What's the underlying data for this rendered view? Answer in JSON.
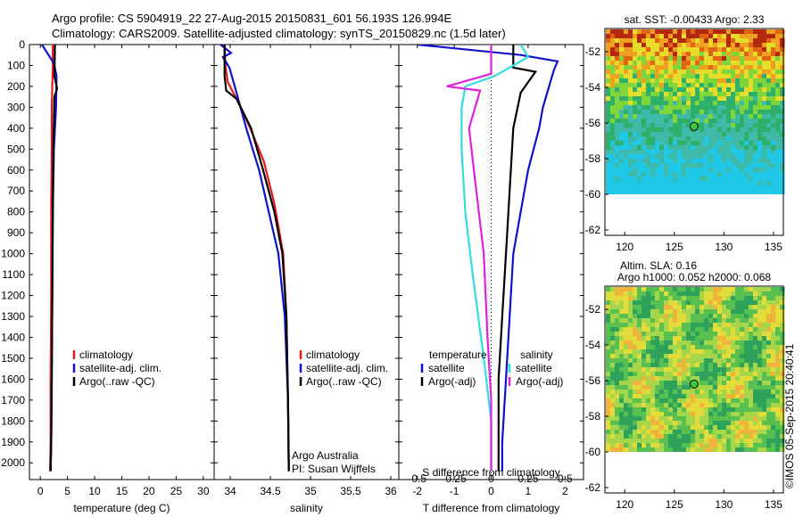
{
  "header": {
    "title_line1": "Argo profile: CS 5904919_22 27-Aug-2015 20150831_601 56.193S 126.994E",
    "title_line2": "Climatology: CARS2009. Satellite-adjusted climatology: synTS_20150829.nc (1.5d later)"
  },
  "colors": {
    "climatology": "#e41a1c",
    "satellite": "#1111cc",
    "argo": "#000000",
    "sat_salinity": "#33dddd",
    "argo_salinity": "#dd22dd"
  },
  "depth_ticks": [
    "0",
    "100",
    "200",
    "300",
    "400",
    "500",
    "600",
    "700",
    "800",
    "900",
    "1000",
    "1100",
    "1200",
    "1300",
    "1400",
    "1500",
    "1600",
    "1700",
    "1800",
    "1900",
    "2000"
  ],
  "chart_data": [
    {
      "type": "line",
      "id": "temperature",
      "xlabel": "temperature (deg C)",
      "xlim": [
        -2,
        32
      ],
      "ylim": [
        2080,
        0
      ],
      "xticks": [
        "0",
        "5",
        "10",
        "15",
        "20",
        "25",
        "30"
      ],
      "legend": [
        "climatology",
        "satellite-adj. clim.",
        "Argo(..raw -QC)"
      ],
      "legend_position": "lower-center",
      "series": [
        {
          "name": "climatology",
          "color_key": "climatology",
          "x": [
            2.3,
            2.3,
            2.2,
            2.1,
            2.1,
            2.0,
            2.0,
            1.9,
            1.9,
            1.8
          ],
          "y": [
            0,
            100,
            200,
            300,
            500,
            800,
            1200,
            1600,
            1900,
            2040
          ]
        },
        {
          "name": "satellite-adj. clim.",
          "color_key": "satellite",
          "x": [
            0.3,
            2.5,
            3.0,
            2.9,
            2.5,
            2.3,
            2.2,
            2.1,
            2.0,
            1.9
          ],
          "y": [
            0,
            90,
            150,
            300,
            500,
            800,
            1200,
            1600,
            1900,
            2040
          ]
        },
        {
          "name": "Argo(..raw -QC)",
          "color_key": "argo",
          "x": [
            2.7,
            2.6,
            3.1,
            2.6,
            2.4,
            2.3,
            2.2,
            2.1,
            2.0,
            1.9
          ],
          "y": [
            0,
            150,
            210,
            250,
            500,
            800,
            1200,
            1600,
            1900,
            2040
          ]
        }
      ]
    },
    {
      "type": "line",
      "id": "salinity",
      "xlabel": "salinity",
      "xlim": [
        33.8,
        36.1
      ],
      "ylim": [
        2080,
        0
      ],
      "xticks": [
        "34",
        "34.5",
        "35",
        "35.5",
        "36"
      ],
      "legend": [
        "climatology",
        "satellite-adj. clim.",
        "Argo(..raw -QC)"
      ],
      "legend_position": "lower-right",
      "annotation": [
        "Argo Australia",
        "PI: Susan Wijffels"
      ],
      "series": [
        {
          "name": "climatology",
          "color_key": "climatology",
          "x": [
            33.93,
            33.94,
            33.97,
            34.08,
            34.25,
            34.42,
            34.55,
            34.66,
            34.7,
            34.72,
            34.73
          ],
          "y": [
            0,
            100,
            180,
            260,
            400,
            560,
            760,
            1000,
            1300,
            1700,
            2040
          ]
        },
        {
          "name": "satellite-adj. clim.",
          "color_key": "satellite",
          "x": [
            33.88,
            34.01,
            33.91,
            33.99,
            34.05,
            34.2,
            34.36,
            34.48,
            34.6,
            34.68,
            34.72,
            34.73
          ],
          "y": [
            0,
            40,
            60,
            110,
            190,
            400,
            600,
            800,
            1000,
            1300,
            1700,
            2040
          ]
        },
        {
          "name": "Argo(..raw -QC)",
          "color_key": "argo",
          "x": [
            33.93,
            33.93,
            33.95,
            34.08,
            34.26,
            34.41,
            34.55,
            34.65,
            34.7,
            34.72,
            34.73
          ],
          "y": [
            0,
            150,
            220,
            260,
            400,
            600,
            800,
            1000,
            1300,
            1700,
            2040
          ]
        }
      ]
    },
    {
      "type": "line",
      "id": "differences",
      "xlabel": "T difference from climatology",
      "xlabel_top": "S difference from climatology",
      "xlim": [
        -2.5,
        2.5
      ],
      "ylim": [
        2080,
        0
      ],
      "xticks": [
        "-2",
        "-1",
        "0",
        "1",
        "2"
      ],
      "xticks_top": [
        "-0.5",
        "-0.25",
        "0",
        "0.25",
        "0.5"
      ],
      "legend_title_left": "temperature",
      "legend_title_right": "salinity",
      "legend": [
        "satellite",
        "Argo(-adj)",
        "satellite",
        "Argo(-adj)"
      ],
      "legend_position": "lower-center",
      "series": [
        {
          "name": "satellite",
          "quantity": "temperature",
          "color_key": "satellite",
          "x": [
            -2.0,
            0.8,
            1.8,
            1.7,
            1.4,
            1.3,
            1.0,
            0.8,
            0.6,
            0.5,
            0.4,
            0.3,
            0.3
          ],
          "y": [
            0,
            50,
            80,
            120,
            300,
            400,
            600,
            800,
            1000,
            1300,
            1600,
            1900,
            2040
          ]
        },
        {
          "name": "Argo(-adj)",
          "quantity": "temperature",
          "color_key": "argo",
          "x": [
            0.6,
            0.6,
            1.2,
            0.8,
            0.6,
            0.5,
            0.4,
            0.3,
            0.2,
            0.2,
            0.2
          ],
          "y": [
            0,
            110,
            130,
            230,
            400,
            700,
            1000,
            1300,
            1600,
            1900,
            2040
          ]
        },
        {
          "name": "satellite",
          "quantity": "salinity",
          "color_key": "sat_salinity",
          "x": [
            0.8,
            1.0,
            0.1,
            -0.7,
            -0.8,
            -0.8,
            -0.7,
            -0.5,
            -0.2,
            0.0,
            0.0
          ],
          "y": [
            0,
            60,
            150,
            200,
            300,
            500,
            800,
            1100,
            1500,
            1800,
            2040
          ]
        },
        {
          "name": "Argo(-adj)",
          "quantity": "salinity",
          "color_key": "argo_salinity",
          "x": [
            0.0,
            0.0,
            -1.2,
            -0.3,
            -0.6,
            -0.4,
            -0.2,
            -0.1,
            0.0,
            0.0
          ],
          "y": [
            0,
            140,
            200,
            220,
            400,
            700,
            1000,
            1400,
            1700,
            2040
          ]
        }
      ]
    },
    {
      "type": "heatmap",
      "id": "sst_map",
      "title": "sat. SST: -0.00433  Argo: 2.33",
      "xlim": [
        118,
        136
      ],
      "ylim": [
        -62.3,
        -50.7
      ],
      "xticks": [
        "120",
        "125",
        "130",
        "135"
      ],
      "yticks": [
        "-52",
        "-54",
        "-56",
        "-58",
        "-60",
        "-62"
      ],
      "marker": {
        "lon": 126.994,
        "lat": -56.193
      }
    },
    {
      "type": "heatmap",
      "id": "sla_map",
      "title_line1": "Altim. SLA: 0.16",
      "title_line2": "Argo h1000: 0.052 h2000: 0.068",
      "xlim": [
        118,
        136
      ],
      "ylim": [
        -62.3,
        -50.7
      ],
      "xticks": [
        "120",
        "125",
        "130",
        "135"
      ],
      "yticks": [
        "-52",
        "-54",
        "-56",
        "-58",
        "-60",
        "-62"
      ],
      "marker": {
        "lon": 126.994,
        "lat": -56.193
      }
    }
  ],
  "footer": {
    "credit": "©IMOS 05-Sep-2015 20:40:41"
  }
}
